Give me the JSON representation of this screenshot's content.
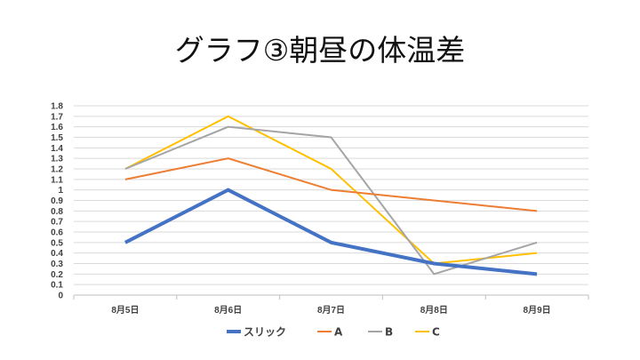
{
  "chart_data": {
    "type": "line",
    "title": "グラフ③朝昼の体温差",
    "categories": [
      "8月5日",
      "8月6日",
      "8月7日",
      "8月8日",
      "8月9日"
    ],
    "ylim": [
      0,
      1.8
    ],
    "yticks": [
      "0",
      "0.1",
      "0.2",
      "0.3",
      "0.4",
      "0.5",
      "0.6",
      "0.7",
      "0.8",
      "0.9",
      "1",
      "1.1",
      "1.2",
      "1.3",
      "1.4",
      "1.5",
      "1.6",
      "1.7",
      "1.8"
    ],
    "grid": true,
    "legend_position": "bottom",
    "series": [
      {
        "name": "スリック",
        "color": "#4472C4",
        "values": [
          0.5,
          1.0,
          0.5,
          0.3,
          0.2
        ]
      },
      {
        "name": "A",
        "color": "#ED7D31",
        "values": [
          1.1,
          1.3,
          1.0,
          0.9,
          0.8
        ]
      },
      {
        "name": "B",
        "color": "#A5A5A5",
        "values": [
          1.2,
          1.6,
          1.5,
          0.2,
          0.5
        ]
      },
      {
        "name": "C",
        "color": "#FFC000",
        "values": [
          1.2,
          1.7,
          1.2,
          0.3,
          0.4
        ]
      }
    ]
  }
}
